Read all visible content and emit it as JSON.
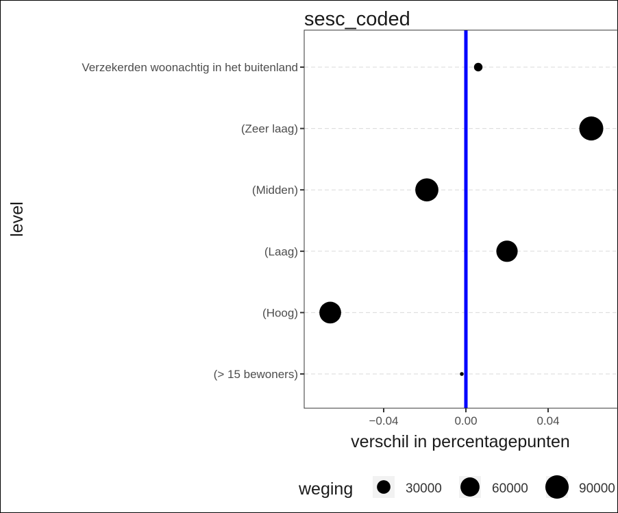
{
  "chart_data": {
    "type": "scatter",
    "title": "sesc_coded",
    "xlabel": "verschil in percentagepunten",
    "ylabel": "level",
    "xlim": [
      -0.0705,
      0.0705
    ],
    "x_ticks": [
      -0.04,
      0.0,
      0.04
    ],
    "x_tick_labels": [
      "−0.04",
      "0.00",
      "0.04"
    ],
    "reference_line": {
      "x": 0.0,
      "color": "#0000ff"
    },
    "grid": "horizontal dashed",
    "legend_position": "bottom",
    "categories": [
      "Verzekerden woonachtig in het buitenland",
      "(Zeer laag)",
      "(Midden)",
      "(Laag)",
      "(Hoog)",
      "(> 15 bewoners)"
    ],
    "points": [
      {
        "category": "Verzekerden woonachtig in het buitenland",
        "x": 0.006,
        "weging": 12000
      },
      {
        "category": "(Zeer laag)",
        "x": 0.061,
        "weging": 95000
      },
      {
        "category": "(Midden)",
        "x": -0.019,
        "weging": 88000
      },
      {
        "category": "(Laag)",
        "x": 0.02,
        "weging": 75000
      },
      {
        "category": "(Hoog)",
        "x": -0.066,
        "weging": 78000
      },
      {
        "category": "(> 15 bewoners)",
        "x": -0.002,
        "weging": 2000
      }
    ],
    "legend": {
      "title": "weging",
      "items": [
        {
          "label": "30000",
          "value": 30000
        },
        {
          "label": "60000",
          "value": 60000
        },
        {
          "label": "90000",
          "value": 90000
        }
      ]
    },
    "colors": {
      "points": "#000000",
      "reference": "#0000ff",
      "grid": "#d9d9d9",
      "axis": "#333333"
    }
  }
}
